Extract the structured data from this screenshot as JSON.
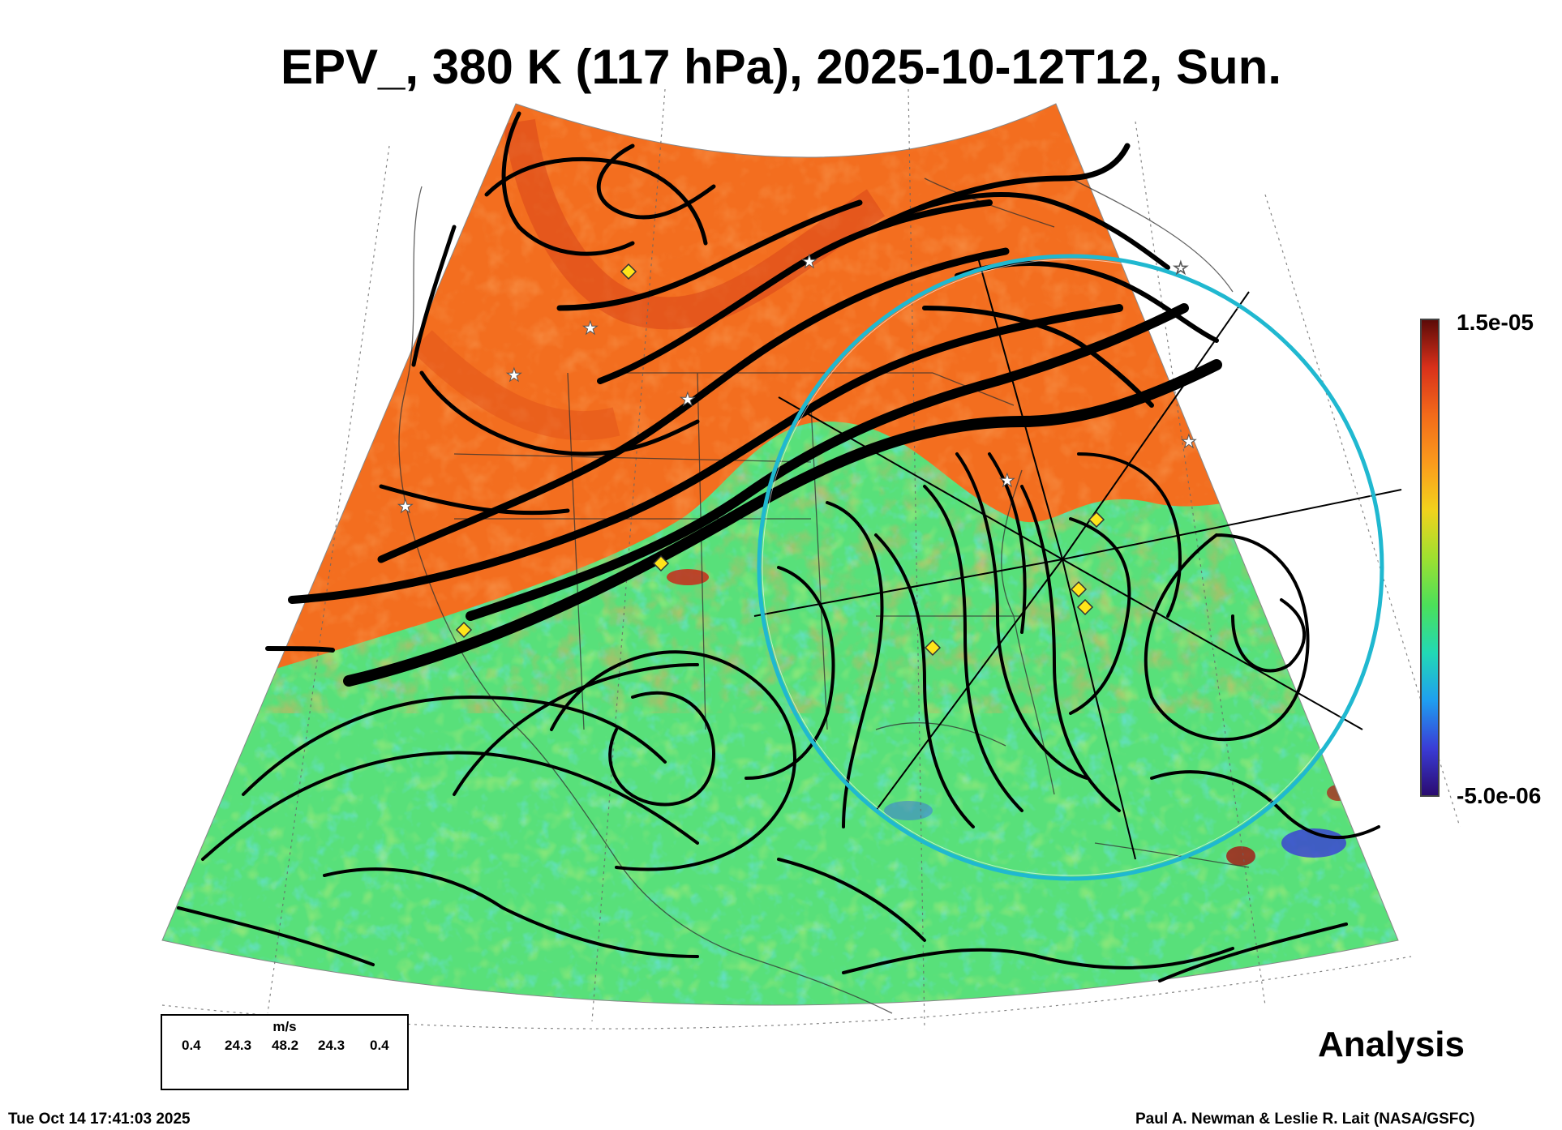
{
  "title": "EPV_, 380 K (117 hPa), 2025-10-12T12, Sun.",
  "colorbar": {
    "max_label": "1.5e-05",
    "min_label": "-5.0e-06",
    "colors": [
      "#2a0a6e",
      "#3a3cd6",
      "#1f9ef0",
      "#22d9b5",
      "#4be05a",
      "#9fe030",
      "#f2d21c",
      "#fb9a1c",
      "#f26a1a",
      "#d8301a",
      "#5a0a08"
    ]
  },
  "wind_legend": {
    "units": "m/s",
    "ticks": [
      "0.4",
      "24.3",
      "48.2",
      "24.3",
      "0.4"
    ]
  },
  "analysis_label": "Analysis",
  "footer": {
    "timestamp": "Tue Oct 14 17:41:03 2025",
    "credit": "Paul A. Newman & Leslie R. Lait (NASA/GSFC)"
  },
  "map": {
    "field_colors": {
      "high": "#f36e1f",
      "high_dark": "#e0501a",
      "low": "#58e07a",
      "low_alt": "#9fe040",
      "cyan": "#22c8dc",
      "blue": "#3050d8",
      "red": "#c82a1a"
    },
    "circle_color": "#20b8d0"
  }
}
